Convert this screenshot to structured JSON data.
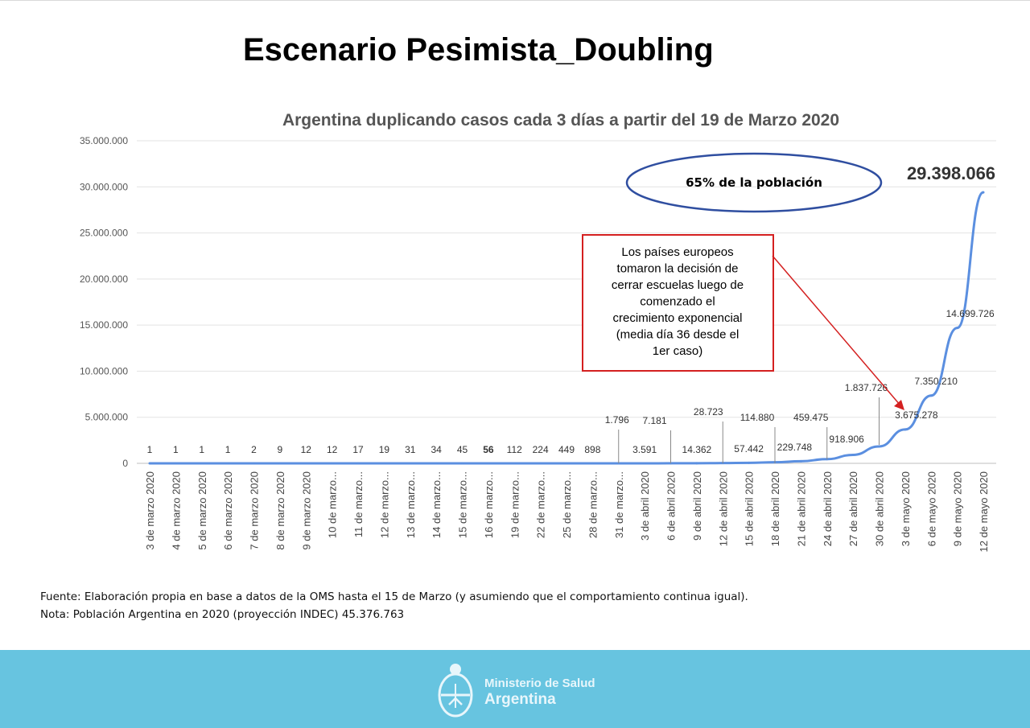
{
  "slide": {
    "title": "Escenario Pesimista_Doubling",
    "fuente": "Fuente: Elaboración propia en base a datos de la OMS hasta el 15 de Marzo (y asumiendo que el comportamiento continua igual).",
    "nota": "Nota: Población Argentina en 2020 (proyección INDEC) 45.376.763"
  },
  "footer": {
    "ministry_line1": "Ministerio de Salud",
    "ministry_line2": "Argentina",
    "band_color": "#67c4e0",
    "logo_icon": "argentina-coat-of-arms-icon"
  },
  "chart_data": {
    "type": "line",
    "title": "Argentina duplicando casos cada 3 días a partir del 19 de Marzo 2020",
    "xlabel": "",
    "ylabel": "",
    "ylim": [
      0,
      35000000
    ],
    "yticks": [
      "0",
      "5.000.000",
      "10.000.000",
      "15.000.000",
      "20.000.000",
      "25.000.000",
      "30.000.000",
      "35.000.000"
    ],
    "grid": true,
    "line_color": "#5b8fe0",
    "categories": [
      "3 de marzo 2020",
      "4 de marzo 2020",
      "5 de marzo 2020",
      "6 de marzo 2020",
      "7 de marzo 2020",
      "8 de marzo 2020",
      "9 de marzo 2020",
      "10 de marzo...",
      "11 de marzo...",
      "12 de marzo...",
      "13 de marzo...",
      "14 de marzo...",
      "15 de marzo...",
      "16 de marzo...",
      "19 de marzo...",
      "22 de marzo...",
      "25 de marzo...",
      "28 de marzo...",
      "31 de marzo...",
      "3 de abril 2020",
      "6 de abril 2020",
      "9 de abril 2020",
      "12 de abril 2020",
      "15 de abril 2020",
      "18 de abril 2020",
      "21 de abril 2020",
      "24 de abril 2020",
      "27 de abril 2020",
      "30 de abril 2020",
      "3 de mayo 2020",
      "6 de mayo 2020",
      "9 de mayo 2020",
      "12 de mayo 2020"
    ],
    "values": [
      1,
      1,
      1,
      1,
      2,
      9,
      12,
      12,
      17,
      19,
      31,
      34,
      45,
      56,
      112,
      224,
      449,
      898,
      1796,
      3591,
      7181,
      14362,
      28723,
      57442,
      114880,
      229748,
      459475,
      918906,
      1837726,
      3675278,
      7350210,
      14699726,
      29398066
    ],
    "data_labels": [
      "1",
      "1",
      "1",
      "1",
      "2",
      "9",
      "12",
      "12",
      "17",
      "19",
      "31",
      "34",
      "45",
      "56",
      "112",
      "224",
      "449",
      "898",
      "1.796",
      "3.591",
      "7.181",
      "14.362",
      "28.723",
      "57.442",
      "114.880",
      "229.748",
      "459.475",
      "918.906",
      "1.837.726",
      "3.675.278",
      "7.350.210",
      "14.699.726",
      "29.398.066"
    ],
    "annotations": {
      "ellipse_text": "65% de la población",
      "box_lines": [
        "Los países europeos",
        "tomaron la decisión de",
        "cerrar escuelas luego de",
        "comenzado el",
        "crecimiento exponencial",
        "(media día 36 desde el",
        "1er caso)"
      ],
      "ellipse_color": "#2f4ea0",
      "box_color": "#d42020"
    }
  }
}
